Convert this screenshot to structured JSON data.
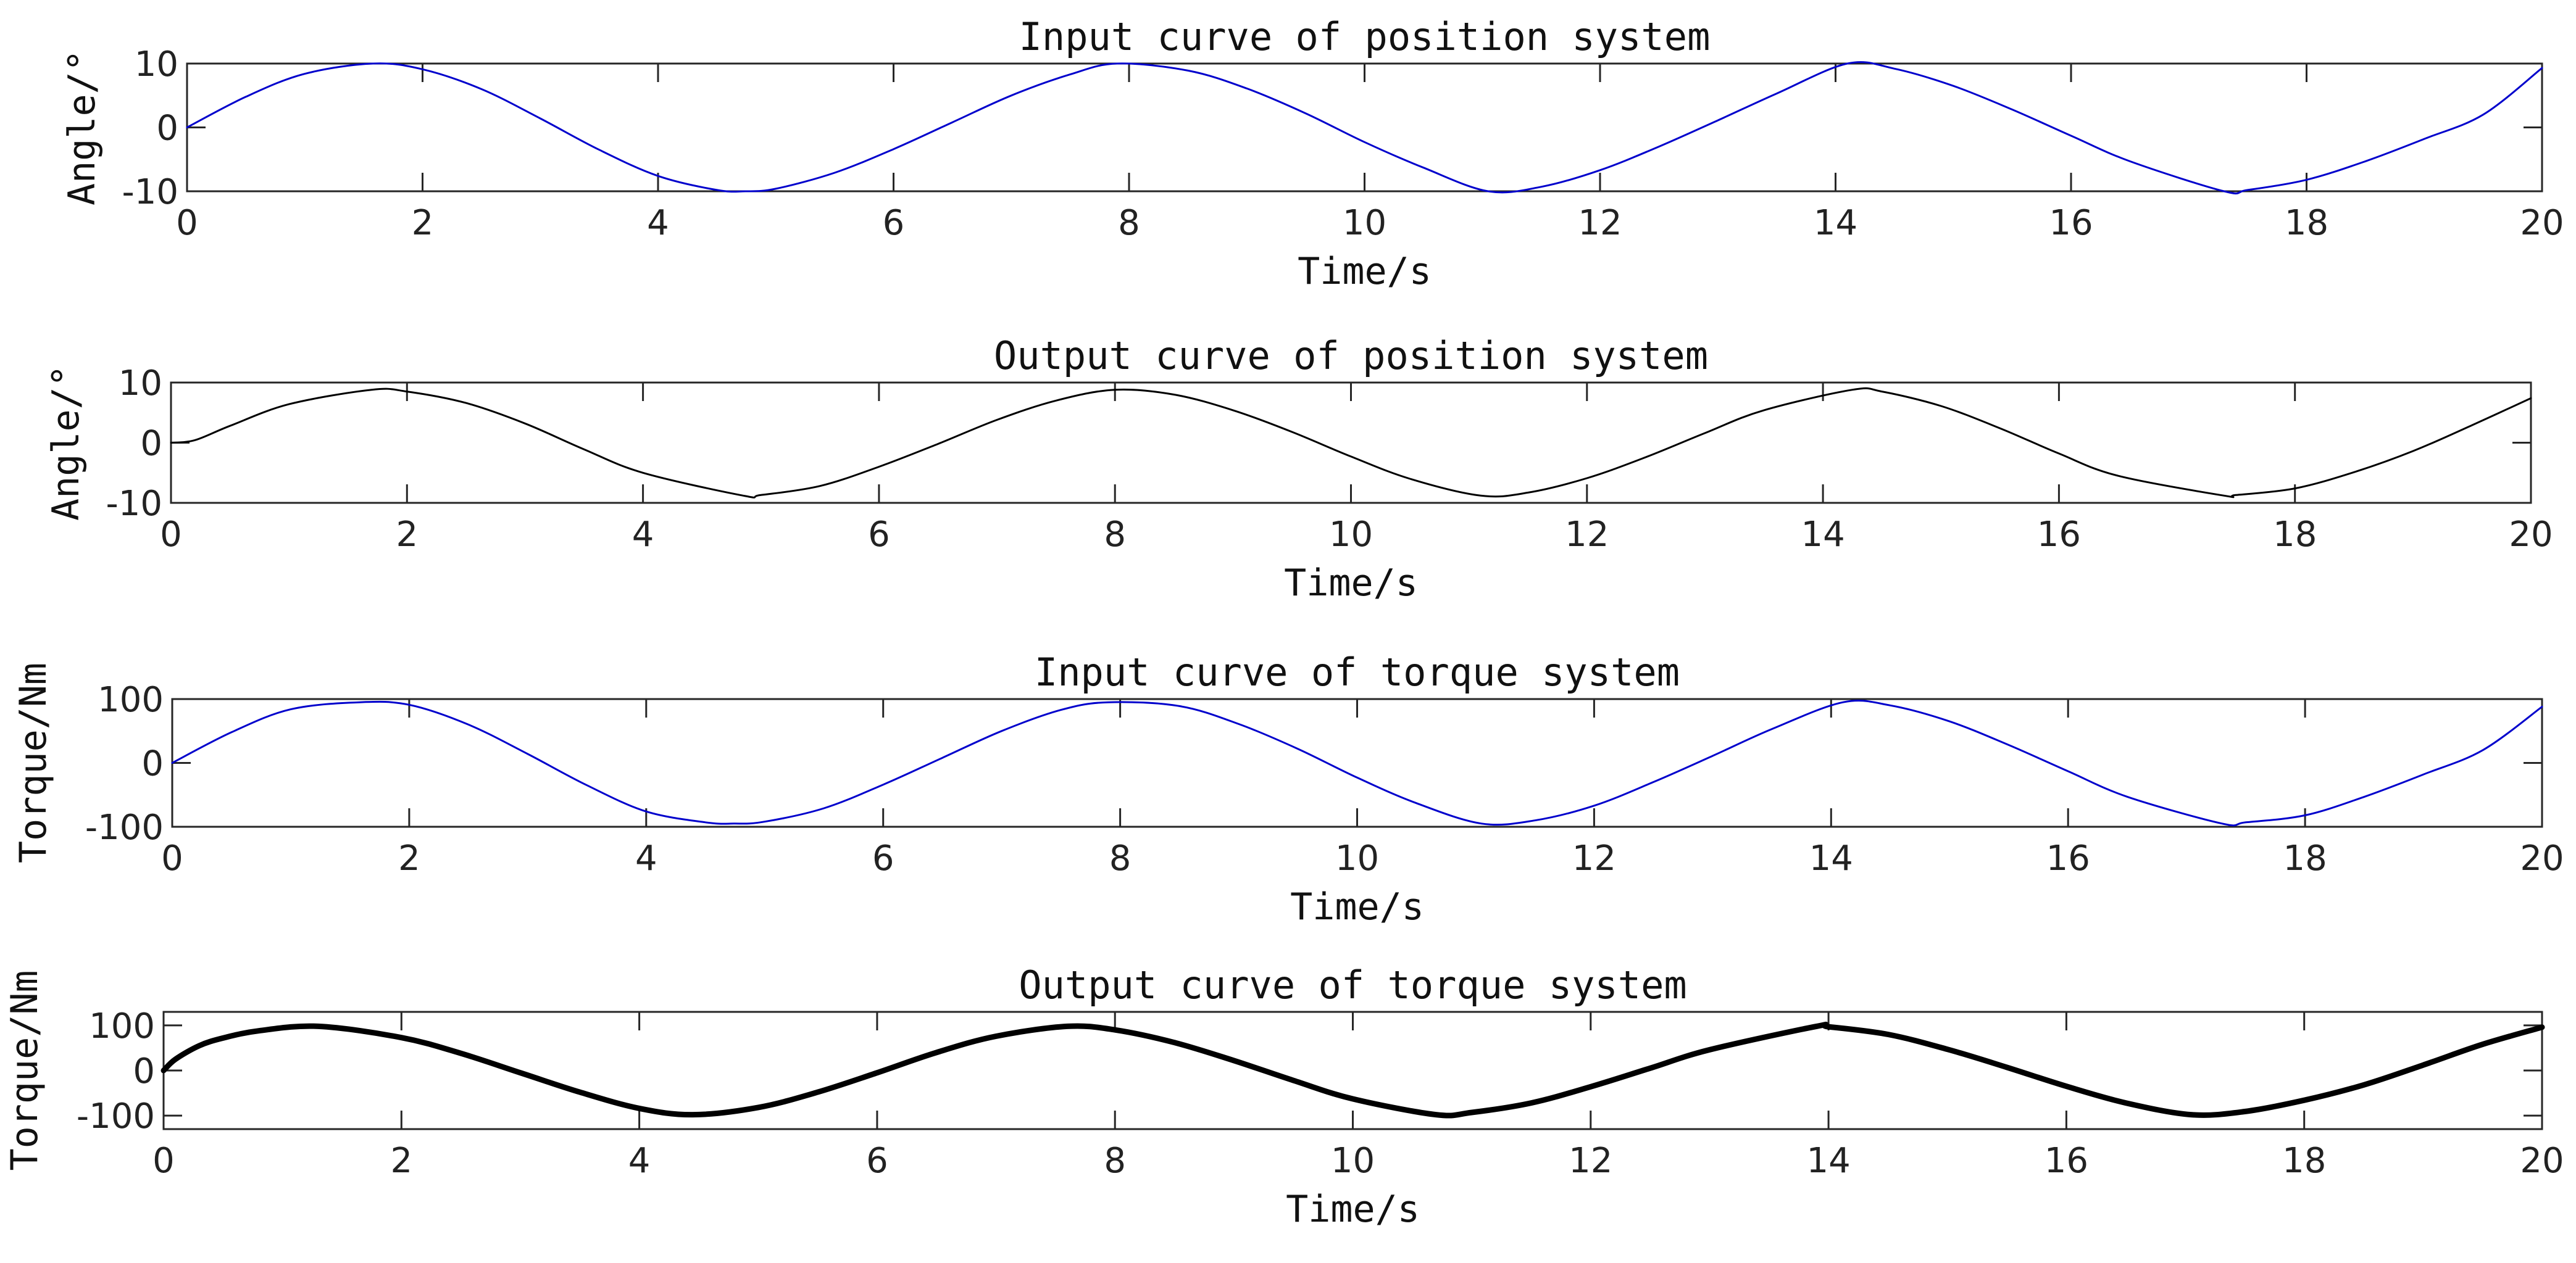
{
  "chart_data": [
    {
      "type": "line",
      "title": "Input curve of position system",
      "xlabel": "Time/s",
      "ylabel": "Angle/°",
      "xlim": [
        0,
        20
      ],
      "ylim": [
        -10,
        10
      ],
      "xticks": [
        0,
        2,
        4,
        6,
        8,
        10,
        12,
        14,
        16,
        18,
        20
      ],
      "yticks": [
        -10,
        0,
        10
      ],
      "color": "#0000cc",
      "grid": false,
      "series": [
        {
          "x": [
            0,
            0.5,
            1,
            1.58,
            2,
            2.5,
            3,
            3.5,
            4,
            4.5,
            4.74,
            5,
            5.5,
            6,
            6.5,
            7,
            7.5,
            7.9,
            8.5,
            9,
            9.5,
            10,
            10.5,
            11.05,
            11.5,
            12,
            12.5,
            13,
            13.5,
            14.1,
            14.5,
            15,
            15.5,
            16,
            16.5,
            17.3,
            17.5,
            18,
            18.5,
            19,
            19.5,
            20
          ],
          "y": [
            0,
            4.8,
            8.4,
            10,
            9.1,
            6.0,
            1.4,
            -3.5,
            -7.6,
            -9.8,
            -10,
            -9.6,
            -7.1,
            -3.4,
            0.8,
            5.0,
            8.3,
            10,
            8.9,
            6.1,
            2.2,
            -2.3,
            -6.3,
            -10,
            -9.3,
            -6.7,
            -3.0,
            1.1,
            5.3,
            10,
            9.2,
            6.5,
            2.8,
            -1.3,
            -5.3,
            -10,
            -9.8,
            -8.2,
            -5.3,
            -1.8,
            2.0,
            9.3
          ]
        }
      ]
    },
    {
      "type": "line",
      "title": "Output curve of position system",
      "xlabel": "Time/s",
      "ylabel": "Angle/°",
      "xlim": [
        0,
        20
      ],
      "ylim": [
        -10,
        10
      ],
      "xticks": [
        0,
        2,
        4,
        6,
        8,
        10,
        12,
        14,
        16,
        18,
        20
      ],
      "yticks": [
        -10,
        0,
        10
      ],
      "color": "#000000",
      "grid": false,
      "series": [
        {
          "x": [
            0,
            0.2,
            0.5,
            1,
            1.7,
            2,
            2.5,
            3,
            3.5,
            4,
            4.85,
            5,
            5.5,
            6,
            6.5,
            7,
            7.5,
            8,
            8.5,
            9,
            9.5,
            10,
            10.5,
            11.1,
            11.5,
            12,
            12.5,
            13,
            13.5,
            14.25,
            14.5,
            15,
            15.5,
            16,
            16.5,
            17.4,
            17.5,
            18,
            18.5,
            19,
            19.5,
            20
          ],
          "y": [
            0,
            0.4,
            2.8,
            6.4,
            8.8,
            8.5,
            6.6,
            3.2,
            -1.1,
            -5.0,
            -8.8,
            -8.7,
            -7.2,
            -4.0,
            -0.2,
            3.8,
            7.0,
            8.8,
            8.0,
            5.4,
            1.8,
            -2.3,
            -6.0,
            -8.8,
            -8.3,
            -5.9,
            -2.4,
            1.6,
            5.4,
            8.8,
            8.5,
            6.1,
            2.4,
            -1.8,
            -5.5,
            -8.8,
            -8.7,
            -7.6,
            -4.9,
            -1.4,
            2.9,
            7.4
          ]
        }
      ]
    },
    {
      "type": "line",
      "title": "Input curve of torque system",
      "xlabel": "Time/s",
      "ylabel": "Torque/Nm",
      "xlim": [
        0,
        20
      ],
      "ylim": [
        -100,
        100
      ],
      "xticks": [
        0,
        2,
        4,
        6,
        8,
        10,
        12,
        14,
        16,
        18,
        20
      ],
      "yticks": [
        -100,
        0,
        100
      ],
      "color": "#0000cc",
      "grid": false,
      "series": [
        {
          "x": [
            0,
            0.5,
            1,
            1.58,
            2,
            2.5,
            3,
            3.5,
            4,
            4.5,
            4.74,
            5,
            5.5,
            6,
            6.5,
            7,
            7.5,
            7.9,
            8.5,
            9,
            9.5,
            10,
            10.5,
            11.05,
            11.5,
            12,
            12.5,
            13,
            13.5,
            14.1,
            14.5,
            15,
            15.5,
            16,
            16.5,
            17.3,
            17.5,
            18,
            18.5,
            19,
            19.5,
            20
          ],
          "y": [
            0,
            48,
            84,
            95,
            91,
            60,
            14,
            -35,
            -76,
            -93,
            -95,
            -92,
            -71,
            -34,
            8,
            50,
            83,
            95,
            89,
            61,
            22,
            -23,
            -63,
            -95,
            -90,
            -67,
            -30,
            11,
            53,
            95,
            90,
            65,
            28,
            -13,
            -53,
            -95,
            -93,
            -82,
            -53,
            -18,
            20,
            88
          ]
        }
      ]
    },
    {
      "type": "line",
      "title": "Output curve of torque system",
      "xlabel": "Time/s",
      "ylabel": "Torque/Nm",
      "xlim": [
        0,
        20
      ],
      "ylim": [
        -130,
        130
      ],
      "xticks": [
        0,
        2,
        4,
        6,
        8,
        10,
        12,
        14,
        16,
        18,
        20
      ],
      "yticks": [
        -100,
        0,
        100
      ],
      "color": "#000000",
      "grid": false,
      "series": [
        {
          "x": [
            0,
            0.1,
            0.3,
            0.5,
            0.8,
            1.3,
            2,
            2.5,
            3,
            3.5,
            4,
            4.45,
            5,
            5.5,
            6,
            6.5,
            7,
            7.6,
            8,
            8.5,
            9,
            9.5,
            10,
            10.7,
            11,
            11.5,
            12,
            12.5,
            13,
            13.9,
            14,
            14.5,
            15,
            15.5,
            16,
            16.5,
            17.05,
            17.5,
            18,
            18.5,
            19,
            19.5,
            20
          ],
          "y": [
            0,
            25,
            55,
            72,
            88,
            98,
            73,
            38,
            -5,
            -48,
            -84,
            -98,
            -82,
            -48,
            -5,
            40,
            76,
            98,
            90,
            62,
            22,
            -22,
            -63,
            -98,
            -93,
            -72,
            -36,
            5,
            46,
            98,
            97,
            80,
            47,
            7,
            -35,
            -72,
            -98,
            -91,
            -66,
            -32,
            12,
            58,
            96
          ]
        }
      ]
    }
  ]
}
